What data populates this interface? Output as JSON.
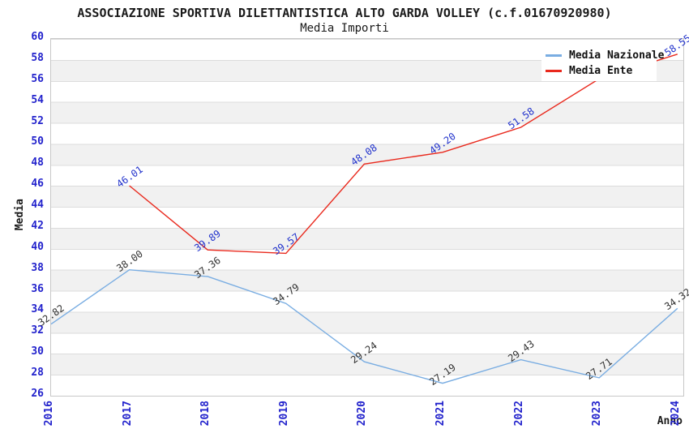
{
  "chart": {
    "title": "ASSOCIAZIONE SPORTIVA DILETTANTISTICA ALTO GARDA VOLLEY (c.f.01670920980)",
    "subtitle": "Media Importi",
    "ylabel": "Media",
    "xlabel": "Anno"
  },
  "colors": {
    "nazionale_line": "#79ade2",
    "ente_line": "#e9291d",
    "axis_tick_text": "#2222cc",
    "nazionale_label_text": "#333333",
    "ente_label_text": "#2233cc",
    "plot_border": "#c8c8c8",
    "band_gray": "#f1f1f1"
  },
  "legend": {
    "items": [
      {
        "label": "Media Nazionale",
        "color": "#79ade2"
      },
      {
        "label": "Media Ente",
        "color": "#e9291d"
      }
    ]
  },
  "chart_data": {
    "type": "line",
    "title": "ASSOCIAZIONE SPORTIVA DILETTANTISTICA ALTO GARDA VOLLEY (c.f.01670920980)",
    "subtitle": "Media Importi",
    "xlabel": "Anno",
    "ylabel": "Media",
    "x": [
      2016,
      2017,
      2018,
      2019,
      2020,
      2021,
      2022,
      2023,
      2024
    ],
    "yticks": [
      60,
      58,
      56,
      54,
      52,
      50,
      48,
      46,
      44,
      42,
      40,
      38,
      36,
      34,
      32,
      30,
      28,
      26
    ],
    "ylim": [
      26,
      60
    ],
    "ytick_step": 2,
    "grid": "horizontal-bands",
    "legend_position": "top-right",
    "series": [
      {
        "name": "Media Nazionale",
        "color": "#79ade2",
        "label_color": "#333333",
        "points": [
          {
            "x": 2016,
            "y": 32.82,
            "label": "32.82"
          },
          {
            "x": 2017,
            "y": 38.0,
            "label": "38.00"
          },
          {
            "x": 2018,
            "y": 37.36,
            "label": "37.36"
          },
          {
            "x": 2019,
            "y": 34.79,
            "label": "34.79"
          },
          {
            "x": 2020,
            "y": 29.24,
            "label": "29.24"
          },
          {
            "x": 2021,
            "y": 27.19,
            "label": "27.19"
          },
          {
            "x": 2022,
            "y": 29.43,
            "label": "29.43"
          },
          {
            "x": 2023,
            "y": 27.71,
            "label": "27.71"
          },
          {
            "x": 2024,
            "y": 34.32,
            "label": "34.32"
          }
        ]
      },
      {
        "name": "Media Ente",
        "color": "#e9291d",
        "label_color": "#2233cc",
        "points": [
          {
            "x": 2017,
            "y": 46.01,
            "label": "46.01"
          },
          {
            "x": 2018,
            "y": 39.89,
            "label": "39.89"
          },
          {
            "x": 2019,
            "y": 39.57,
            "label": "39.57"
          },
          {
            "x": 2020,
            "y": 48.08,
            "label": "48.08"
          },
          {
            "x": 2021,
            "y": 49.2,
            "label": "49.20"
          },
          {
            "x": 2022,
            "y": 51.58,
            "label": "51.58"
          },
          {
            "x": 2023,
            "y": 56.2,
            "label": ""
          },
          {
            "x": 2024,
            "y": 58.55,
            "label": "58.55"
          }
        ]
      }
    ]
  }
}
